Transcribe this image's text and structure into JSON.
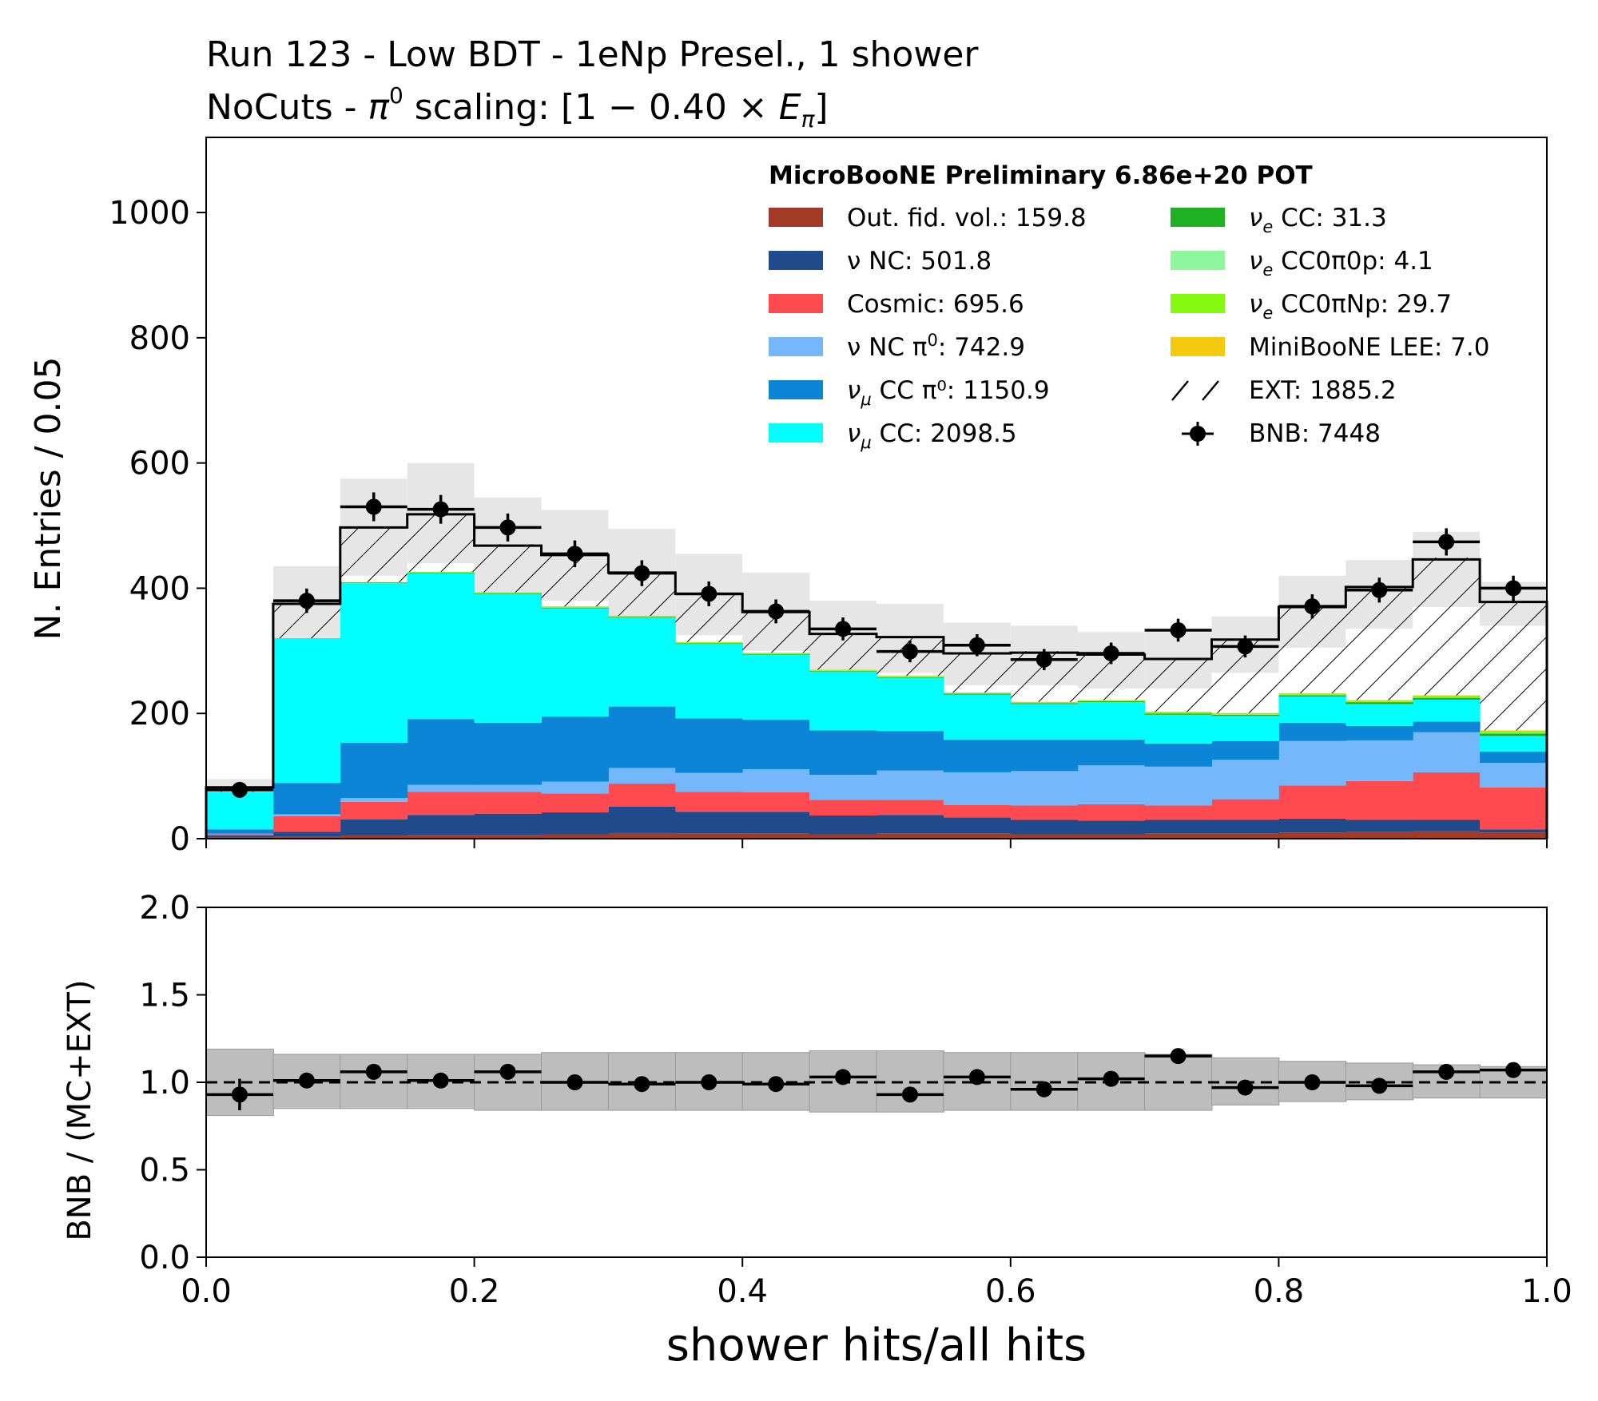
{
  "titles": {
    "line1": "Run 123 - Low BDT - 1eNp Presel., 1 shower",
    "line2_pre": "NoCuts - ",
    "line2_pi": "π",
    "line2_sup": "0",
    "line2_mid": " scaling: [1 − 0.40 × ",
    "line2_E": "E",
    "line2_Esub": "π",
    "line2_end": "]"
  },
  "legend": {
    "header": "MicroBooNE Preliminary 6.86e+20 POT",
    "left": [
      {
        "key": "outfv",
        "color": "#a33a27",
        "pre": "Out. fid. vol.: 159.8"
      },
      {
        "key": "nc",
        "color": "#1f4a8c",
        "pre": "ν NC: 501.8"
      },
      {
        "key": "cosmic",
        "color": "#ff4a4f",
        "pre": "Cosmic: 695.6"
      },
      {
        "key": "ncpi0",
        "color": "#74b7fb",
        "pre": "ν NC π",
        "sup": "0",
        "post": ": 742.9"
      },
      {
        "key": "numuccpi0",
        "color": "#0d85d6",
        "pre": "ν",
        "sub": "μ",
        "post": " CC π⁰: 1150.9"
      },
      {
        "key": "numucc",
        "color": "#00ffff",
        "pre": "ν",
        "sub": "μ",
        "post": " CC: 2098.5"
      }
    ],
    "right": [
      {
        "key": "nuecc",
        "color": "#20b023",
        "pre": "ν",
        "sub": "e",
        "post": " CC: 31.3"
      },
      {
        "key": "nuecc0pi0p",
        "color": "#8ef79e",
        "pre": "ν",
        "sub": "e",
        "post": " CC0π0p: 4.1"
      },
      {
        "key": "nuecc0piNp",
        "color": "#84fa11",
        "pre": "ν",
        "sub": "e",
        "post": " CC0πNp: 29.7"
      },
      {
        "key": "lee",
        "color": "#f5c90d",
        "pre": "MiniBooNE LEE: 7.0"
      },
      {
        "key": "ext",
        "color": "#ffffff",
        "pre": "EXT: 1885.2",
        "hatch": true
      },
      {
        "key": "bnb",
        "color": "#000000",
        "pre": "BNB: 7448",
        "marker": true
      }
    ]
  },
  "chart_data": {
    "type": "bar",
    "xlabel": "shower hits/all hits",
    "top_panel": {
      "ylabel": "N. Entries / 0.05",
      "ylim": [
        0,
        1120
      ],
      "yticks": [
        0,
        200,
        400,
        600,
        800,
        1000
      ],
      "stack_order": [
        "outfv",
        "nc",
        "cosmic",
        "ncpi0",
        "numuccpi0",
        "numucc",
        "nuecc",
        "nuecc0pi0p",
        "nuecc0piNp",
        "lee",
        "ext"
      ],
      "bin_edges": [
        0.0,
        0.05,
        0.1,
        0.15,
        0.2,
        0.25,
        0.3,
        0.35,
        0.4,
        0.45,
        0.5,
        0.55,
        0.6,
        0.65,
        0.7,
        0.75,
        0.8,
        0.85,
        0.9,
        0.95,
        1.0
      ],
      "series": [
        {
          "name": "Out. fid. vol.: 159.8",
          "key": "outfv",
          "values": [
            2,
            3,
            5,
            6,
            6,
            7,
            9,
            8,
            8,
            7,
            8,
            8,
            7,
            7,
            8,
            8,
            10,
            11,
            12,
            10
          ]
        },
        {
          "name": "ν NC: 501.8",
          "key": "nc",
          "values": [
            3,
            8,
            26,
            32,
            34,
            35,
            42,
            35,
            35,
            30,
            30,
            26,
            23,
            22,
            22,
            22,
            22,
            19,
            18,
            5
          ]
        },
        {
          "name": "Cosmic: 695.6",
          "key": "cosmic",
          "values": [
            2,
            25,
            28,
            37,
            35,
            30,
            37,
            32,
            31,
            25,
            24,
            20,
            23,
            26,
            23,
            33,
            53,
            62,
            76,
            67
          ]
        },
        {
          "name": "ν NC π⁰: 742.9",
          "key": "ncpi0",
          "values": [
            1,
            3,
            6,
            11,
            11,
            19,
            25,
            30,
            37,
            40,
            47,
            52,
            55,
            62,
            62,
            63,
            71,
            65,
            64,
            39
          ]
        },
        {
          "name": "ν μ CC π⁰: 1150.9",
          "key": "numuccpi0",
          "values": [
            7,
            50,
            88,
            105,
            99,
            104,
            98,
            87,
            79,
            71,
            63,
            52,
            50,
            41,
            37,
            30,
            29,
            23,
            17,
            18
          ]
        },
        {
          "name": "ν μ CC: 2098.5",
          "key": "numucc",
          "values": [
            60,
            230,
            255,
            233,
            206,
            173,
            142,
            119,
            104,
            94,
            85,
            72,
            57,
            60,
            46,
            40,
            42,
            35,
            35,
            25
          ]
        },
        {
          "name": "ν e CC: 31.3",
          "key": "nuecc",
          "values": [
            0,
            0.5,
            1,
            1,
            1,
            1,
            1,
            1,
            1,
            1,
            1,
            1.5,
            1.5,
            1.5,
            2,
            2,
            2,
            3,
            3,
            4
          ]
        },
        {
          "name": "ν e CC0π0p: 4.1",
          "key": "nuecc0pi0p",
          "values": [
            0,
            0,
            0,
            0,
            0,
            0.2,
            0.2,
            0.2,
            0.2,
            0.2,
            0.2,
            0.2,
            0.2,
            0.2,
            0.3,
            0.3,
            0.3,
            0.3,
            0.4,
            0.6
          ]
        },
        {
          "name": "ν e CC0πNp: 29.7",
          "key": "nuecc0piNp",
          "values": [
            0,
            0.5,
            0.8,
            1,
            1.2,
            1.5,
            1.5,
            1.5,
            1.5,
            1.5,
            1.5,
            1.5,
            1.5,
            1.5,
            2,
            2,
            2.5,
            2.5,
            3,
            3.5
          ]
        },
        {
          "name": "MiniBooNE LEE: 7.0",
          "key": "lee",
          "values": [
            0,
            0,
            0.2,
            0.2,
            0.2,
            0.3,
            0.3,
            0.3,
            0.3,
            0.3,
            0.3,
            0.3,
            0.3,
            0.3,
            0.4,
            0.4,
            0.5,
            0.5,
            0.6,
            0.8
          ]
        },
        {
          "name": "EXT: 1885.2",
          "key": "ext",
          "values": [
            7,
            55,
            87,
            92,
            77,
            83,
            70,
            78,
            68,
            57,
            60,
            62,
            81,
            73,
            85,
            117,
            140,
            182,
            220,
            205
          ]
        }
      ],
      "total_mc_ext": [
        82,
        375,
        497,
        518,
        468,
        453,
        425,
        391,
        362,
        327,
        322,
        296,
        297,
        294,
        287,
        318,
        370,
        402,
        446,
        378
      ],
      "unc_band": [
        [
          75,
          95
        ],
        [
          320,
          435
        ],
        [
          420,
          575
        ],
        [
          440,
          600
        ],
        [
          390,
          545
        ],
        [
          380,
          525
        ],
        [
          355,
          495
        ],
        [
          325,
          455
        ],
        [
          300,
          425
        ],
        [
          270,
          380
        ],
        [
          265,
          375
        ],
        [
          245,
          345
        ],
        [
          245,
          340
        ],
        [
          240,
          330
        ],
        [
          240,
          330
        ],
        [
          265,
          355
        ],
        [
          305,
          420
        ],
        [
          335,
          445
        ],
        [
          370,
          490
        ],
        [
          340,
          410
        ]
      ],
      "bnb": {
        "name": "BNB: 7448",
        "x": [
          0.025,
          0.075,
          0.125,
          0.175,
          0.225,
          0.275,
          0.325,
          0.375,
          0.425,
          0.475,
          0.525,
          0.575,
          0.625,
          0.675,
          0.725,
          0.775,
          0.825,
          0.875,
          0.925,
          0.975
        ],
        "y": [
          78,
          380,
          530,
          526,
          497,
          455,
          424,
          391,
          363,
          335,
          299,
          309,
          286,
          296,
          333,
          307,
          371,
          397,
          474,
          400
        ]
      }
    },
    "ratio_panel": {
      "ylabel": "BNB / (MC+EXT)",
      "ylim": [
        0.0,
        2.0
      ],
      "yticks": [
        0.0,
        0.5,
        1.0,
        1.5,
        2.0
      ],
      "xticks": [
        0.0,
        0.2,
        0.4,
        0.6,
        0.8,
        1.0
      ],
      "ratio": [
        0.93,
        1.01,
        1.06,
        1.01,
        1.06,
        1.0,
        0.99,
        1.0,
        0.99,
        1.03,
        0.93,
        1.03,
        0.96,
        1.02,
        1.15,
        0.97,
        1.0,
        0.98,
        1.06,
        1.07
      ],
      "ratio_err": [
        0.09,
        0.03,
        0.03,
        0.03,
        0.03,
        0.03,
        0.03,
        0.03,
        0.03,
        0.03,
        0.03,
        0.03,
        0.03,
        0.03,
        0.03,
        0.03,
        0.03,
        0.03,
        0.03,
        0.03
      ],
      "band": [
        [
          0.81,
          1.19
        ],
        [
          0.85,
          1.16
        ],
        [
          0.85,
          1.16
        ],
        [
          0.85,
          1.16
        ],
        [
          0.84,
          1.16
        ],
        [
          0.84,
          1.17
        ],
        [
          0.84,
          1.17
        ],
        [
          0.84,
          1.17
        ],
        [
          0.84,
          1.17
        ],
        [
          0.83,
          1.18
        ],
        [
          0.83,
          1.18
        ],
        [
          0.84,
          1.17
        ],
        [
          0.84,
          1.17
        ],
        [
          0.84,
          1.17
        ],
        [
          0.84,
          1.16
        ],
        [
          0.87,
          1.14
        ],
        [
          0.89,
          1.12
        ],
        [
          0.9,
          1.11
        ],
        [
          0.91,
          1.1
        ],
        [
          0.91,
          1.09
        ]
      ]
    }
  }
}
